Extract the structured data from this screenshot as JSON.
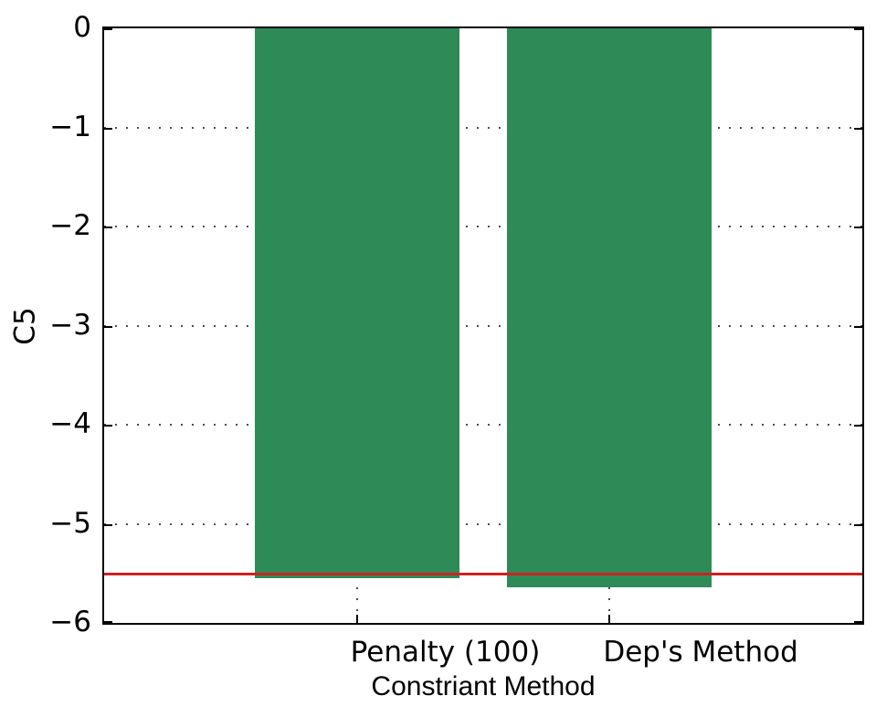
{
  "figure": {
    "background": "#ffffff",
    "frame_color": "#000000",
    "grid_color": "#4d4d4d"
  },
  "chart_data": {
    "type": "bar",
    "title": "",
    "xlabel": "Constriant Method",
    "ylabel": "C5",
    "categories": [
      "Penalty (100)",
      "Dep's Method"
    ],
    "x_positions": [
      1,
      2
    ],
    "values": [
      -5.55,
      -5.64
    ],
    "bar_color": "#2e8b57",
    "bar_width": 0.81,
    "xlim": [
      0,
      3
    ],
    "ylim": [
      -6,
      0
    ],
    "yticks": [
      0,
      -1,
      -2,
      -3,
      -4,
      -5,
      -6
    ],
    "ytick_labels": [
      "0",
      "−1",
      "−2",
      "−3",
      "−4",
      "−5",
      "−6"
    ],
    "grid": true,
    "grid_style": "dotted",
    "legend": null,
    "reference_line": {
      "y": -5.5,
      "color": "#cc2222"
    }
  }
}
